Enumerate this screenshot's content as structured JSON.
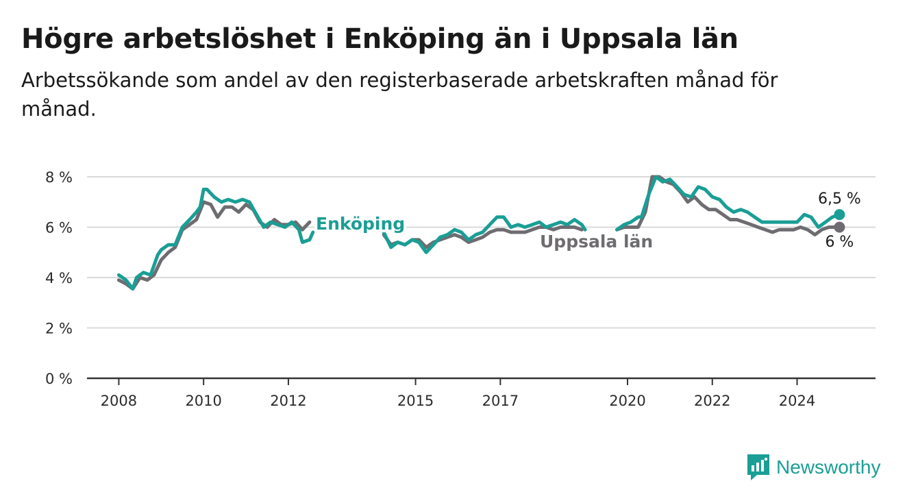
{
  "title": "Högre arbetslöshet i Enköping än i Uppsala län",
  "subtitle": "Arbetssökande som andel av den registerbaserade arbetskraften månad för månad.",
  "brand": "Newsworthy",
  "colors": {
    "enkoping": "#1a9e95",
    "uppsala": "#6e6c70",
    "grid": "#d9d9d9",
    "axis": "#333333"
  },
  "end_labels": {
    "enkoping": "6,5 %",
    "uppsala": "6 %"
  },
  "chart_data": {
    "type": "line",
    "title": "Högre arbetslöshet i Enköping än i Uppsala län",
    "xlabel": "",
    "ylabel": "",
    "x_ticks": [
      2008,
      2010,
      2012,
      2015,
      2017,
      2020,
      2022,
      2024
    ],
    "y_ticks": [
      0,
      2,
      4,
      6,
      8
    ],
    "y_tick_labels": [
      "0 %",
      "2 %",
      "4 %",
      "6 %",
      "8 %"
    ],
    "xlim": [
      2007.25,
      2025.85
    ],
    "ylim": [
      0,
      8
    ],
    "grid": "horizontal",
    "legend": "inline labels",
    "series": [
      {
        "name": "Enköping",
        "points": [
          [
            2008.0,
            4.1
          ],
          [
            2008.17,
            3.9
          ],
          [
            2008.33,
            3.55
          ],
          [
            2008.42,
            4.0
          ],
          [
            2008.58,
            4.2
          ],
          [
            2008.75,
            4.1
          ],
          [
            2008.92,
            4.9
          ],
          [
            2009.0,
            5.1
          ],
          [
            2009.17,
            5.3
          ],
          [
            2009.33,
            5.3
          ],
          [
            2009.5,
            6.0
          ],
          [
            2009.67,
            6.3
          ],
          [
            2009.83,
            6.6
          ],
          [
            2009.92,
            6.8
          ],
          [
            2010.0,
            7.5
          ],
          [
            2010.08,
            7.5
          ],
          [
            2010.25,
            7.2
          ],
          [
            2010.42,
            7.0
          ],
          [
            2010.58,
            7.1
          ],
          [
            2010.75,
            7.0
          ],
          [
            2010.92,
            7.1
          ],
          [
            2011.08,
            7.0
          ],
          [
            2011.25,
            6.5
          ],
          [
            2011.42,
            6.0
          ],
          [
            2011.58,
            6.2
          ],
          [
            2011.75,
            6.1
          ],
          [
            2011.92,
            6.0
          ],
          [
            2012.08,
            6.2
          ],
          [
            2012.25,
            5.9
          ],
          [
            2012.33,
            5.4
          ],
          [
            2012.5,
            5.5
          ],
          [
            2012.58,
            5.8
          ]
        ]
      },
      {
        "name": "Enköping",
        "points": [
          [
            2014.25,
            5.8
          ],
          [
            2014.42,
            5.2
          ],
          [
            2014.58,
            5.4
          ],
          [
            2014.75,
            5.3
          ],
          [
            2014.92,
            5.5
          ],
          [
            2015.08,
            5.4
          ],
          [
            2015.25,
            5.0
          ],
          [
            2015.42,
            5.3
          ],
          [
            2015.58,
            5.6
          ],
          [
            2015.75,
            5.7
          ],
          [
            2015.92,
            5.9
          ],
          [
            2016.08,
            5.8
          ],
          [
            2016.25,
            5.5
          ],
          [
            2016.42,
            5.7
          ],
          [
            2016.58,
            5.8
          ],
          [
            2016.75,
            6.1
          ],
          [
            2016.92,
            6.4
          ],
          [
            2017.08,
            6.4
          ],
          [
            2017.25,
            6.0
          ],
          [
            2017.42,
            6.1
          ],
          [
            2017.58,
            6.0
          ],
          [
            2017.75,
            6.1
          ],
          [
            2017.92,
            6.2
          ],
          [
            2018.08,
            6.0
          ],
          [
            2018.25,
            6.1
          ],
          [
            2018.42,
            6.2
          ],
          [
            2018.58,
            6.1
          ],
          [
            2018.75,
            6.3
          ],
          [
            2018.92,
            6.1
          ],
          [
            2019.0,
            5.9
          ]
        ]
      },
      {
        "name": "Enköping",
        "points": [
          [
            2019.75,
            5.9
          ],
          [
            2019.92,
            6.1
          ],
          [
            2020.08,
            6.2
          ],
          [
            2020.25,
            6.4
          ],
          [
            2020.33,
            6.4
          ],
          [
            2020.5,
            7.3
          ],
          [
            2020.67,
            8.0
          ],
          [
            2020.83,
            7.8
          ],
          [
            2021.0,
            7.9
          ],
          [
            2021.17,
            7.6
          ],
          [
            2021.33,
            7.3
          ],
          [
            2021.5,
            7.2
          ],
          [
            2021.67,
            7.6
          ],
          [
            2021.83,
            7.5
          ],
          [
            2022.0,
            7.2
          ],
          [
            2022.17,
            7.1
          ],
          [
            2022.33,
            6.8
          ],
          [
            2022.5,
            6.6
          ],
          [
            2022.67,
            6.7
          ],
          [
            2022.83,
            6.6
          ],
          [
            2023.0,
            6.4
          ],
          [
            2023.17,
            6.2
          ],
          [
            2023.33,
            6.2
          ],
          [
            2023.5,
            6.2
          ],
          [
            2023.67,
            6.2
          ],
          [
            2023.83,
            6.2
          ],
          [
            2024.0,
            6.2
          ],
          [
            2024.17,
            6.5
          ],
          [
            2024.33,
            6.4
          ],
          [
            2024.5,
            6.0
          ],
          [
            2024.67,
            6.2
          ],
          [
            2024.83,
            6.4
          ],
          [
            2025.0,
            6.5
          ]
        ]
      },
      {
        "name": "Uppsala län",
        "points": [
          [
            2008.0,
            3.9
          ],
          [
            2008.17,
            3.75
          ],
          [
            2008.33,
            3.55
          ],
          [
            2008.5,
            4.0
          ],
          [
            2008.67,
            3.9
          ],
          [
            2008.83,
            4.1
          ],
          [
            2009.0,
            4.7
          ],
          [
            2009.17,
            5.0
          ],
          [
            2009.33,
            5.2
          ],
          [
            2009.5,
            5.9
          ],
          [
            2009.67,
            6.1
          ],
          [
            2009.83,
            6.3
          ],
          [
            2010.0,
            7.0
          ],
          [
            2010.17,
            6.9
          ],
          [
            2010.33,
            6.4
          ],
          [
            2010.5,
            6.8
          ],
          [
            2010.67,
            6.8
          ],
          [
            2010.83,
            6.6
          ],
          [
            2011.0,
            6.9
          ],
          [
            2011.17,
            6.7
          ],
          [
            2011.33,
            6.2
          ],
          [
            2011.5,
            6.0
          ],
          [
            2011.67,
            6.3
          ],
          [
            2011.83,
            6.1
          ],
          [
            2012.0,
            6.1
          ],
          [
            2012.17,
            6.2
          ],
          [
            2012.33,
            5.9
          ],
          [
            2012.5,
            6.2
          ]
        ]
      },
      {
        "name": "Uppsala län",
        "points": [
          [
            2014.25,
            5.7
          ],
          [
            2014.42,
            5.3
          ],
          [
            2014.58,
            5.4
          ],
          [
            2014.75,
            5.3
          ],
          [
            2014.92,
            5.5
          ],
          [
            2015.08,
            5.5
          ],
          [
            2015.25,
            5.2
          ],
          [
            2015.42,
            5.4
          ],
          [
            2015.58,
            5.5
          ],
          [
            2015.75,
            5.6
          ],
          [
            2015.92,
            5.7
          ],
          [
            2016.08,
            5.6
          ],
          [
            2016.25,
            5.4
          ],
          [
            2016.42,
            5.5
          ],
          [
            2016.58,
            5.6
          ],
          [
            2016.75,
            5.8
          ],
          [
            2016.92,
            5.9
          ],
          [
            2017.08,
            5.9
          ],
          [
            2017.25,
            5.8
          ],
          [
            2017.42,
            5.8
          ],
          [
            2017.58,
            5.8
          ],
          [
            2017.75,
            5.9
          ],
          [
            2017.92,
            6.0
          ],
          [
            2018.08,
            6.0
          ],
          [
            2018.25,
            5.9
          ],
          [
            2018.42,
            6.0
          ],
          [
            2018.58,
            6.0
          ],
          [
            2018.75,
            6.0
          ],
          [
            2018.92,
            5.9
          ]
        ]
      },
      {
        "name": "Uppsala län",
        "points": [
          [
            2019.75,
            5.9
          ],
          [
            2019.92,
            6.0
          ],
          [
            2020.08,
            6.0
          ],
          [
            2020.25,
            6.0
          ],
          [
            2020.42,
            6.6
          ],
          [
            2020.58,
            8.0
          ],
          [
            2020.75,
            8.0
          ],
          [
            2020.92,
            7.8
          ],
          [
            2021.08,
            7.7
          ],
          [
            2021.25,
            7.4
          ],
          [
            2021.42,
            7.0
          ],
          [
            2021.58,
            7.2
          ],
          [
            2021.75,
            6.9
          ],
          [
            2021.92,
            6.7
          ],
          [
            2022.08,
            6.7
          ],
          [
            2022.25,
            6.5
          ],
          [
            2022.42,
            6.3
          ],
          [
            2022.58,
            6.3
          ],
          [
            2022.75,
            6.2
          ],
          [
            2022.92,
            6.1
          ],
          [
            2023.08,
            6.0
          ],
          [
            2023.25,
            5.9
          ],
          [
            2023.42,
            5.8
          ],
          [
            2023.58,
            5.9
          ],
          [
            2023.75,
            5.9
          ],
          [
            2023.92,
            5.9
          ],
          [
            2024.08,
            6.0
          ],
          [
            2024.25,
            5.9
          ],
          [
            2024.42,
            5.7
          ],
          [
            2024.58,
            5.9
          ],
          [
            2024.75,
            6.0
          ],
          [
            2024.92,
            6.0
          ],
          [
            2025.0,
            6.0
          ]
        ]
      }
    ]
  }
}
